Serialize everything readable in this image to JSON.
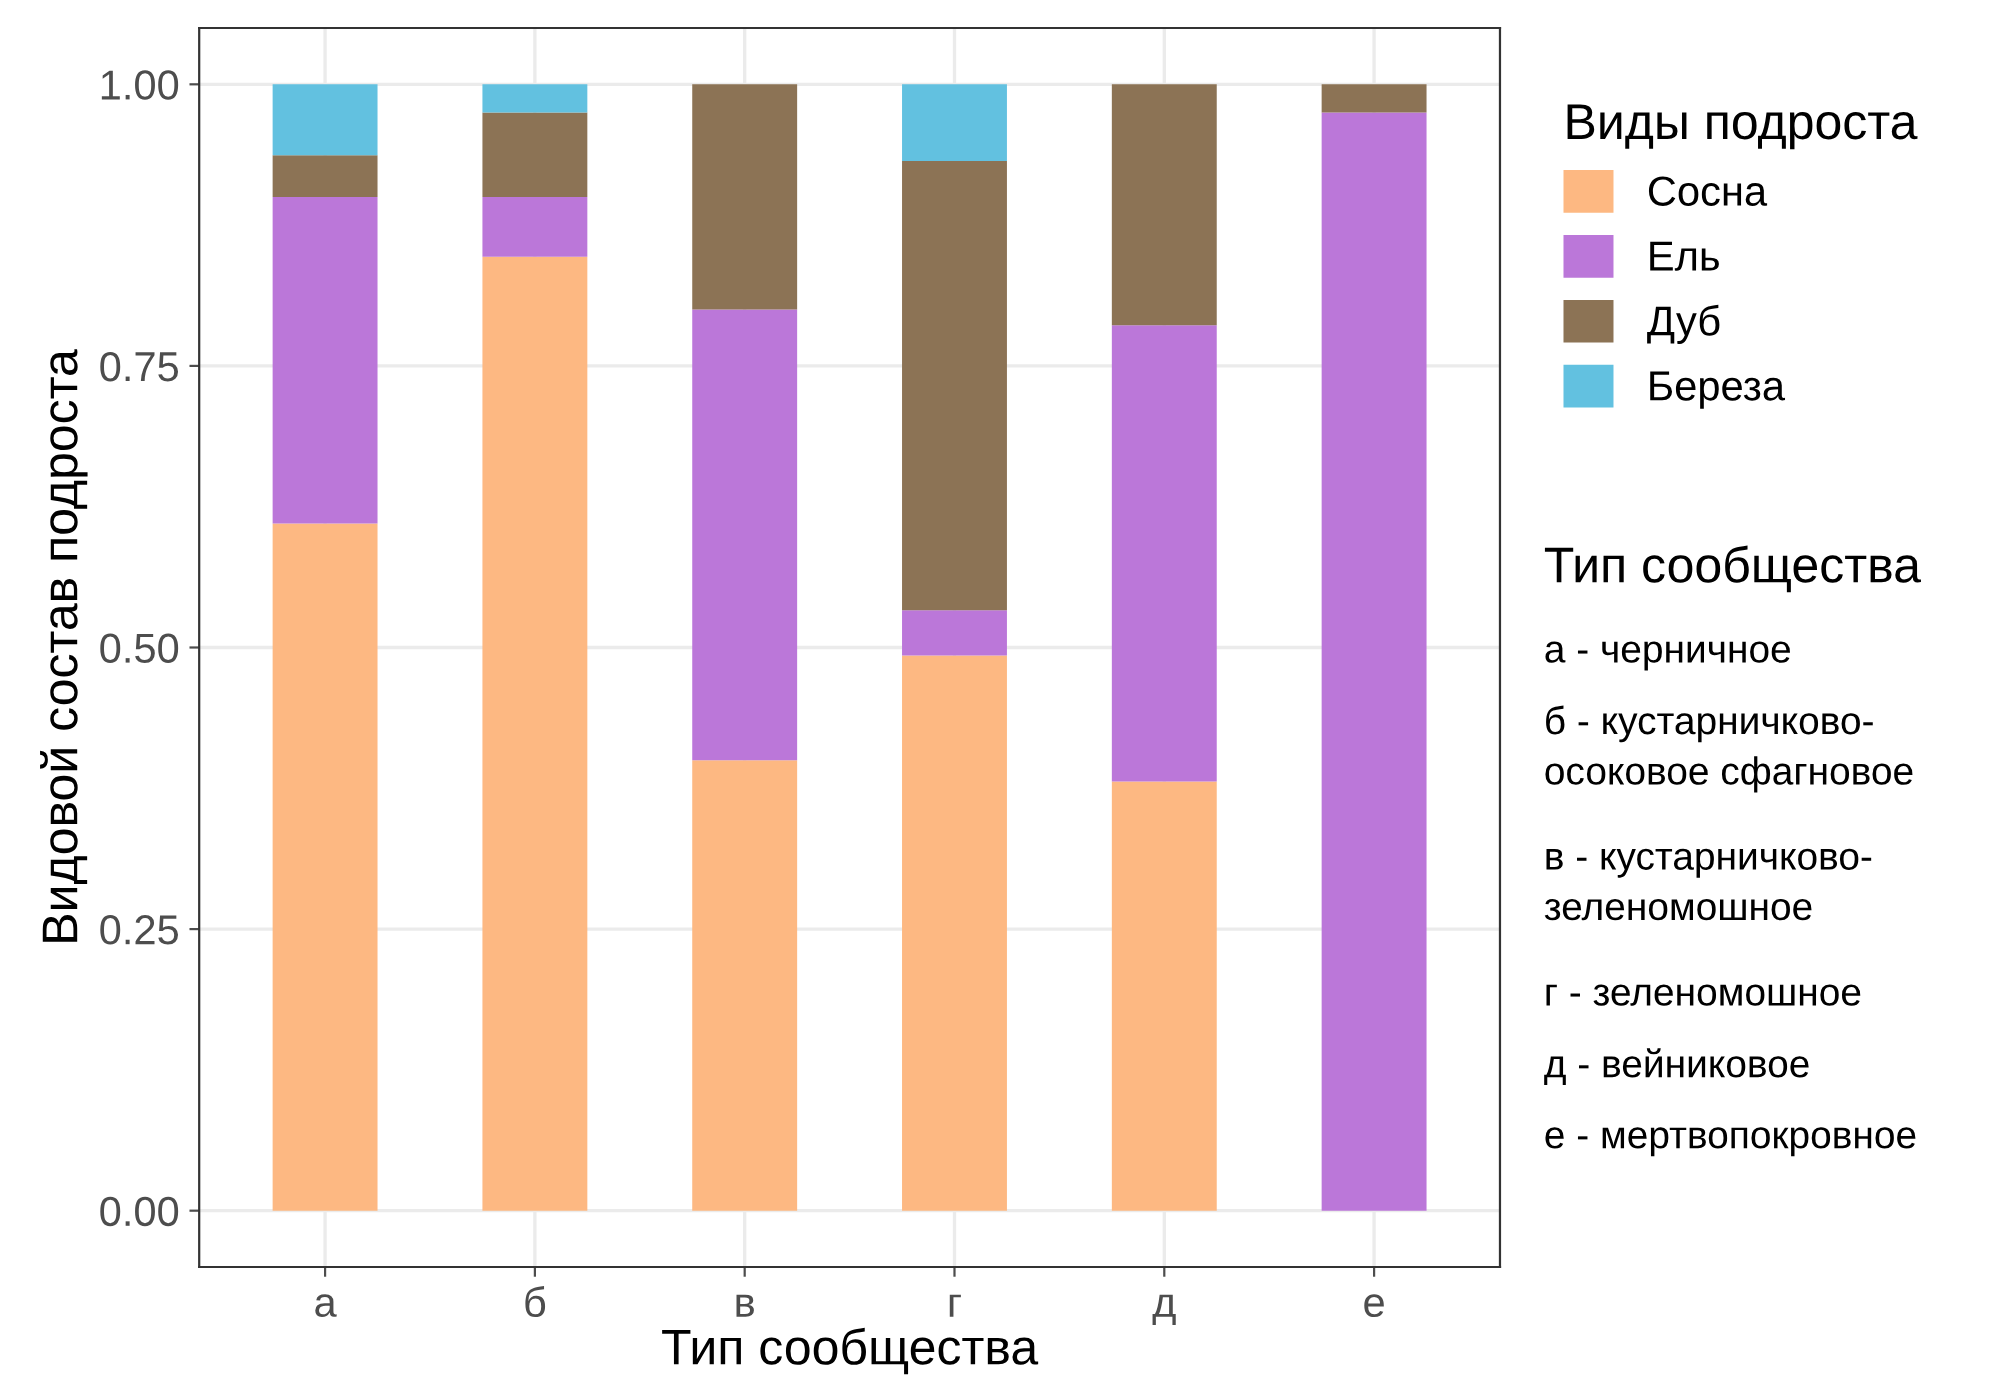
{
  "chart_data": {
    "type": "bar",
    "stacked": true,
    "xlabel": "Тип сообщества",
    "ylabel": "Видовой состав подроста",
    "legend_title": "Виды подроста",
    "categories": [
      "а",
      "б",
      "в",
      "г",
      "д",
      "е"
    ],
    "series": [
      {
        "name": "Сосна",
        "color": "#fdb882",
        "values": [
          0.61,
          0.847,
          0.4,
          0.493,
          0.381,
          0
        ]
      },
      {
        "name": "Ель",
        "color": "#bb77d9",
        "values": [
          0.29,
          0.053,
          0.4,
          0.04,
          0.405,
          0.975
        ]
      },
      {
        "name": "Дуб",
        "color": "#8c7355",
        "values": [
          0.037,
          0.075,
          0.2,
          0.399,
          0.214,
          0.025
        ]
      },
      {
        "name": "Береза",
        "color": "#62c1e0",
        "values": [
          0.063,
          0.025,
          0,
          0.068,
          0,
          0
        ]
      }
    ],
    "ylim": [
      -0.05,
      1.05
    ],
    "yticks": [
      {
        "value": 0,
        "label": "0.00"
      },
      {
        "value": 0.25,
        "label": "0.25"
      },
      {
        "value": 0.5,
        "label": "0.50"
      },
      {
        "value": 0.75,
        "label": "0.75"
      },
      {
        "value": 1,
        "label": "1.00"
      }
    ],
    "grid": true,
    "legend": "right",
    "annotations": [
      "Тип сообщества",
      "а - черничное",
      "б - кустарничково-\nосоковое сфагновое",
      "в - кустарничково-\nзеленомошное",
      "г - зеленомошное",
      "д - вейниковое",
      "е - мертвопокровное"
    ]
  }
}
